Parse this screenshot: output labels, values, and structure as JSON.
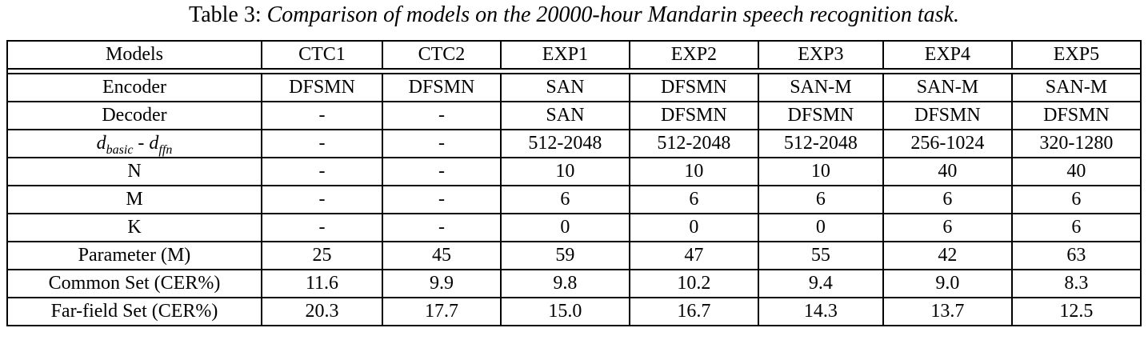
{
  "caption": {
    "prefix": "Table 3:",
    "text": "Comparison of models on the 20000-hour Mandarin speech recognition task."
  },
  "colors": {
    "text": "#000000",
    "background": "#ffffff",
    "border": "#000000"
  },
  "table": {
    "columns": [
      "Models",
      "CTC1",
      "CTC2",
      "EXP1",
      "EXP2",
      "EXP3",
      "EXP4",
      "EXP5"
    ],
    "rows": [
      {
        "label": "Encoder",
        "values": [
          "DFSMN",
          "DFSMN",
          "SAN",
          "DFSMN",
          "SAN-M",
          "SAN-M",
          "SAN-M"
        ]
      },
      {
        "label": "Decoder",
        "values": [
          "-",
          "-",
          "SAN",
          "DFSMN",
          "DFSMN",
          "DFSMN",
          "DFSMN"
        ]
      },
      {
        "label_parts": [
          {
            "text": "d",
            "sub": "basic"
          },
          {
            "text": " - "
          },
          {
            "text": "d",
            "sub": "ffn"
          }
        ],
        "values": [
          "-",
          "-",
          "512-2048",
          "512-2048",
          "512-2048",
          "256-1024",
          "320-1280"
        ]
      },
      {
        "label": "N",
        "values": [
          "-",
          "-",
          "10",
          "10",
          "10",
          "40",
          "40"
        ]
      },
      {
        "label": "M",
        "values": [
          "-",
          "-",
          "6",
          "6",
          "6",
          "6",
          "6"
        ]
      },
      {
        "label": "K",
        "values": [
          "-",
          "-",
          "0",
          "0",
          "0",
          "6",
          "6"
        ]
      },
      {
        "label": "Parameter (M)",
        "values": [
          "25",
          "45",
          "59",
          "47",
          "55",
          "42",
          "63"
        ]
      },
      {
        "label": "Common Set (CER%)",
        "values": [
          "11.6",
          "9.9",
          "9.8",
          "10.2",
          "9.4",
          "9.0",
          "8.3"
        ]
      },
      {
        "label": "Far-field Set (CER%)",
        "values": [
          "20.3",
          "17.7",
          "15.0",
          "16.7",
          "14.3",
          "13.7",
          "12.5"
        ]
      }
    ]
  },
  "chart_data": {
    "type": "table",
    "title": "Table 3: Comparison of models on the 20000-hour Mandarin speech recognition task.",
    "columns": [
      "Models",
      "CTC1",
      "CTC2",
      "EXP1",
      "EXP2",
      "EXP3",
      "EXP4",
      "EXP5"
    ],
    "row_labels": [
      "Encoder",
      "Decoder",
      "d_basic - d_ffn",
      "N",
      "M",
      "K",
      "Parameter (M)",
      "Common Set (CER%)",
      "Far-field Set (CER%)"
    ],
    "series": [
      {
        "name": "CTC1",
        "values": [
          "DFSMN",
          "-",
          "-",
          "-",
          "-",
          "-",
          25,
          11.6,
          20.3
        ]
      },
      {
        "name": "CTC2",
        "values": [
          "DFSMN",
          "-",
          "-",
          "-",
          "-",
          "-",
          45,
          9.9,
          17.7
        ]
      },
      {
        "name": "EXP1",
        "values": [
          "SAN",
          "SAN",
          "512-2048",
          10,
          6,
          0,
          59,
          9.8,
          15.0
        ]
      },
      {
        "name": "EXP2",
        "values": [
          "DFSMN",
          "DFSMN",
          "512-2048",
          10,
          6,
          0,
          47,
          10.2,
          16.7
        ]
      },
      {
        "name": "EXP3",
        "values": [
          "SAN-M",
          "DFSMN",
          "512-2048",
          10,
          6,
          0,
          55,
          9.4,
          14.3
        ]
      },
      {
        "name": "EXP4",
        "values": [
          "SAN-M",
          "DFSMN",
          "256-1024",
          40,
          6,
          6,
          42,
          9.0,
          13.7
        ]
      },
      {
        "name": "EXP5",
        "values": [
          "SAN-M",
          "DFSMN",
          "320-1280",
          40,
          6,
          6,
          63,
          8.3,
          12.5
        ]
      }
    ]
  }
}
